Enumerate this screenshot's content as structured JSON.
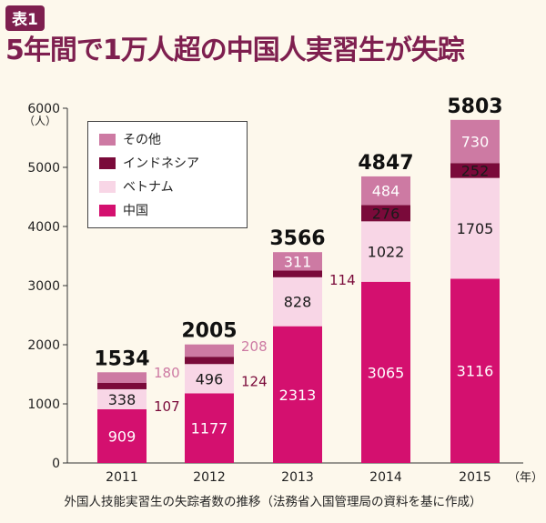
{
  "header": {
    "badge": "表1",
    "title": "5年間で1万人超の中国人実習生が失踪"
  },
  "caption": "外国人技能実習生の失踪者数の推移（法務省入国管理局の資料を基に作成）",
  "colors": {
    "china": "#d4106f",
    "vietnam": "#f8d6e6",
    "indonesia": "#7a0a3a",
    "other": "#cd7aa3",
    "title": "#7e1f4f",
    "background": "#fdf8ec"
  },
  "legend": [
    {
      "label": "その他",
      "color": "#cd7aa3"
    },
    {
      "label": "インドネシア",
      "color": "#7a0a3a"
    },
    {
      "label": "ベトナム",
      "color": "#f8d6e6"
    },
    {
      "label": "中国",
      "color": "#d4106f"
    }
  ],
  "chart_data": {
    "type": "bar",
    "stacked": true,
    "ylabel": "（人）",
    "x_unit": "（年）",
    "ylim": [
      0,
      6000
    ],
    "yticks": [
      0,
      1000,
      2000,
      3000,
      4000,
      5000,
      6000
    ],
    "categories": [
      "2011",
      "2012",
      "2013",
      "2014",
      "2015"
    ],
    "series": [
      {
        "name": "中国",
        "values": [
          909,
          1177,
          2313,
          3065,
          3116
        ]
      },
      {
        "name": "ベトナム",
        "values": [
          338,
          496,
          828,
          1022,
          1705
        ]
      },
      {
        "name": "インドネシア",
        "values": [
          107,
          124,
          114,
          276,
          252
        ]
      },
      {
        "name": "その他",
        "values": [
          180,
          208,
          311,
          484,
          730
        ]
      }
    ],
    "totals": [
      1534,
      2005,
      3566,
      4847,
      5803
    ]
  }
}
